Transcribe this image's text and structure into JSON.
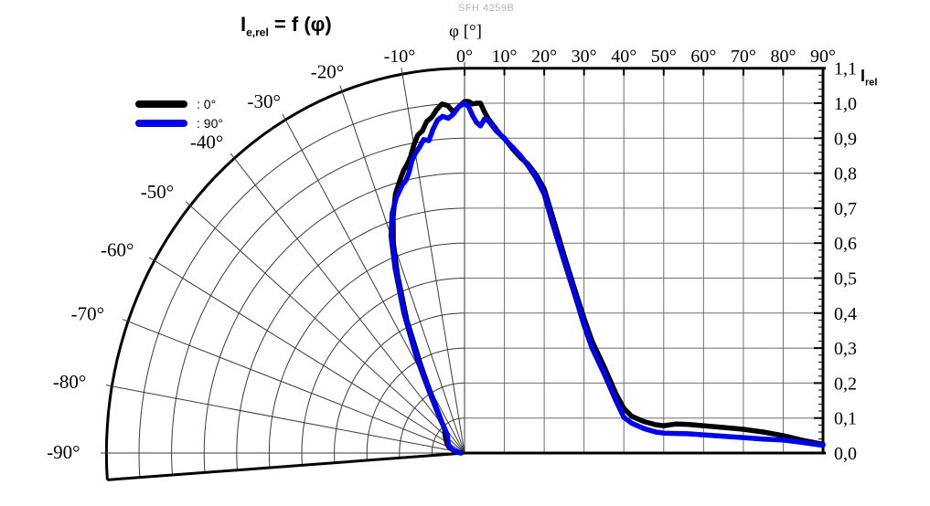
{
  "product_label": "SFH 4259B",
  "title": {
    "base": "I",
    "sub": "e,rel",
    "rest": " = f (φ)"
  },
  "axes": {
    "phi_title": "φ [°]",
    "irel_title_base": "I",
    "irel_title_sub": "rel",
    "top_tick_labels": [
      "-10°",
      "0°",
      "10°",
      "20°",
      "30°",
      "40°",
      "50°",
      "60°",
      "70°",
      "80°",
      "90°"
    ],
    "right_tick_labels": [
      "1,1",
      "1,0",
      "0,9",
      "0,8",
      "0,7",
      "0,6",
      "0,5",
      "0,4",
      "0,3",
      "0,2",
      "0,1",
      "0,0"
    ],
    "polar_tick_labels": [
      "-20°",
      "-30°",
      "-40°",
      "-50°",
      "-60°",
      "-70°",
      "-80°",
      "-90°"
    ]
  },
  "legend": [
    {
      "label": ": 0°",
      "color": "#000000"
    },
    {
      "label": ": 90°",
      "color": "#0000EE"
    }
  ],
  "colors": {
    "curve_black": "#000000",
    "curve_blue": "#0000EE",
    "axis": "#000000",
    "grid_polar": "#3a3a3a",
    "grid_cartesian": "#6e6e6e",
    "product_label": "#b5b5b5"
  },
  "chart_data": {
    "type": "line",
    "layout": "half-polar left half (-90°..0°, radial = Irel) joined to cartesian right half (0°..90°)",
    "title": "Ie,rel = f (φ)",
    "xlabel": "φ [°]",
    "ylabel": "Irel",
    "ylim": [
      0.0,
      1.1
    ],
    "y_tick_step": 0.1,
    "y_minor_tick_step": 0.02,
    "x_range_deg": [
      -90,
      90
    ],
    "x_tick_step_deg": 10,
    "angles_deg": [
      -90,
      -85,
      -80,
      -75,
      -70,
      -65,
      -60,
      -55,
      -50,
      -45,
      -42,
      -40,
      -38,
      -35,
      -32,
      -30,
      -28,
      -25,
      -22,
      -20,
      -18,
      -16,
      -14,
      -13,
      -12,
      -11,
      -10,
      -9,
      -8,
      -7,
      -6,
      -5,
      -4,
      -3,
      -2,
      -1,
      0,
      1,
      2,
      3,
      4,
      5,
      6,
      7,
      8,
      9,
      10,
      12,
      14,
      16,
      18,
      20,
      22,
      25,
      28,
      30,
      32,
      35,
      38,
      40,
      42,
      45,
      48,
      50,
      53,
      56,
      60,
      65,
      70,
      75,
      80,
      85,
      90
    ],
    "series": [
      {
        "name": "0°",
        "color": "#000000",
        "values": [
          0.01,
          0.018,
          0.028,
          0.04,
          0.052,
          0.058,
          0.064,
          0.07,
          0.078,
          0.085,
          0.092,
          0.1,
          0.115,
          0.14,
          0.185,
          0.23,
          0.29,
          0.42,
          0.55,
          0.64,
          0.71,
          0.77,
          0.81,
          0.83,
          0.845,
          0.865,
          0.895,
          0.92,
          0.93,
          0.955,
          0.965,
          0.985,
          1.0,
          0.995,
          0.975,
          0.99,
          1.005,
          1.005,
          0.998,
          1.0,
          1.0,
          0.975,
          0.955,
          0.94,
          0.925,
          0.91,
          0.9,
          0.87,
          0.845,
          0.825,
          0.795,
          0.755,
          0.68,
          0.565,
          0.455,
          0.385,
          0.32,
          0.248,
          0.17,
          0.128,
          0.105,
          0.09,
          0.081,
          0.078,
          0.083,
          0.082,
          0.078,
          0.073,
          0.068,
          0.06,
          0.05,
          0.036,
          0.025
        ]
      },
      {
        "name": "90°",
        "color": "#0000EE",
        "values": [
          0.013,
          0.02,
          0.028,
          0.038,
          0.048,
          0.054,
          0.058,
          0.063,
          0.068,
          0.075,
          0.088,
          0.1,
          0.12,
          0.15,
          0.2,
          0.25,
          0.32,
          0.44,
          0.57,
          0.66,
          0.72,
          0.76,
          0.79,
          0.8,
          0.82,
          0.85,
          0.87,
          0.885,
          0.905,
          0.9,
          0.93,
          0.955,
          0.965,
          0.958,
          0.97,
          0.99,
          1.0,
          0.99,
          0.965,
          0.945,
          0.935,
          0.955,
          0.95,
          0.935,
          0.92,
          0.91,
          0.898,
          0.875,
          0.85,
          0.82,
          0.785,
          0.74,
          0.66,
          0.548,
          0.44,
          0.365,
          0.3,
          0.228,
          0.15,
          0.102,
          0.085,
          0.07,
          0.06,
          0.057,
          0.056,
          0.055,
          0.052,
          0.048,
          0.044,
          0.04,
          0.037,
          0.03,
          0.022
        ]
      }
    ]
  }
}
